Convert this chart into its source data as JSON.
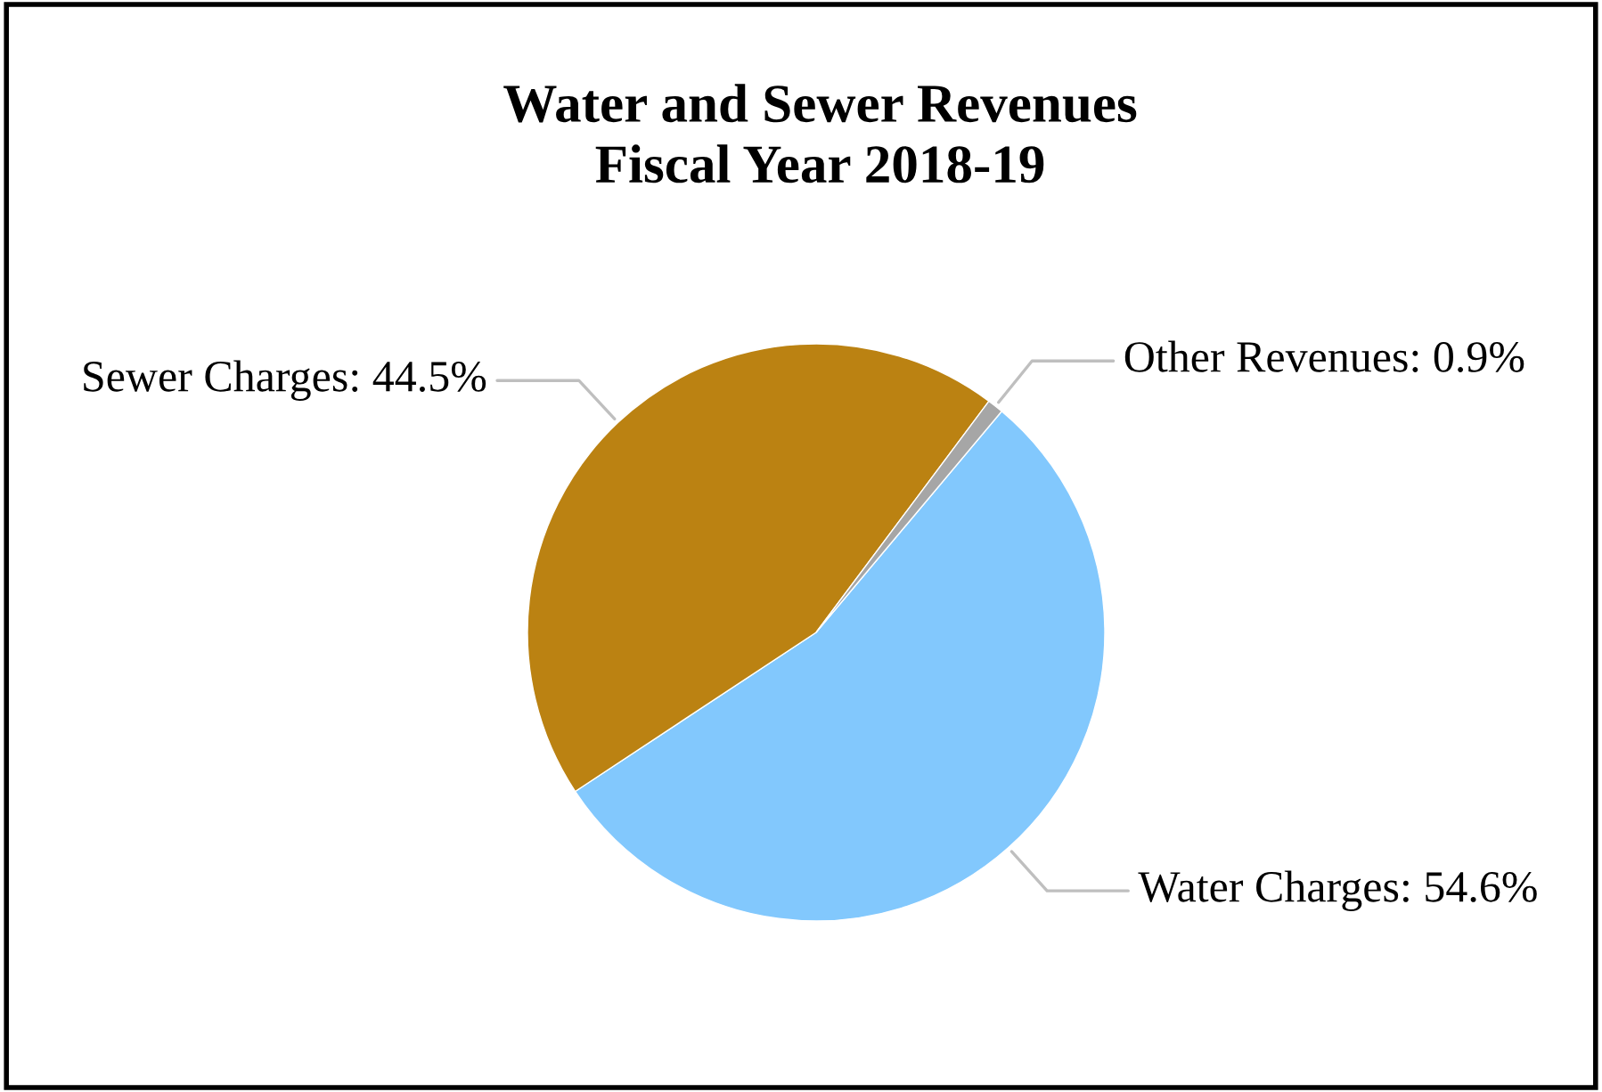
{
  "chart_data": {
    "type": "pie",
    "title": "Water and Sewer Revenues\nFiscal Year 2018-19",
    "categories": [
      "Water Charges",
      "Sewer Charges",
      "Other Revenues"
    ],
    "values": [
      54.6,
      44.5,
      0.9
    ],
    "value_labels": [
      "54.6%",
      "44.5%",
      "0.9%"
    ],
    "colors": [
      "#82c8fd",
      "#bb8212",
      "#a6a6a6"
    ],
    "legend": false
  }
}
